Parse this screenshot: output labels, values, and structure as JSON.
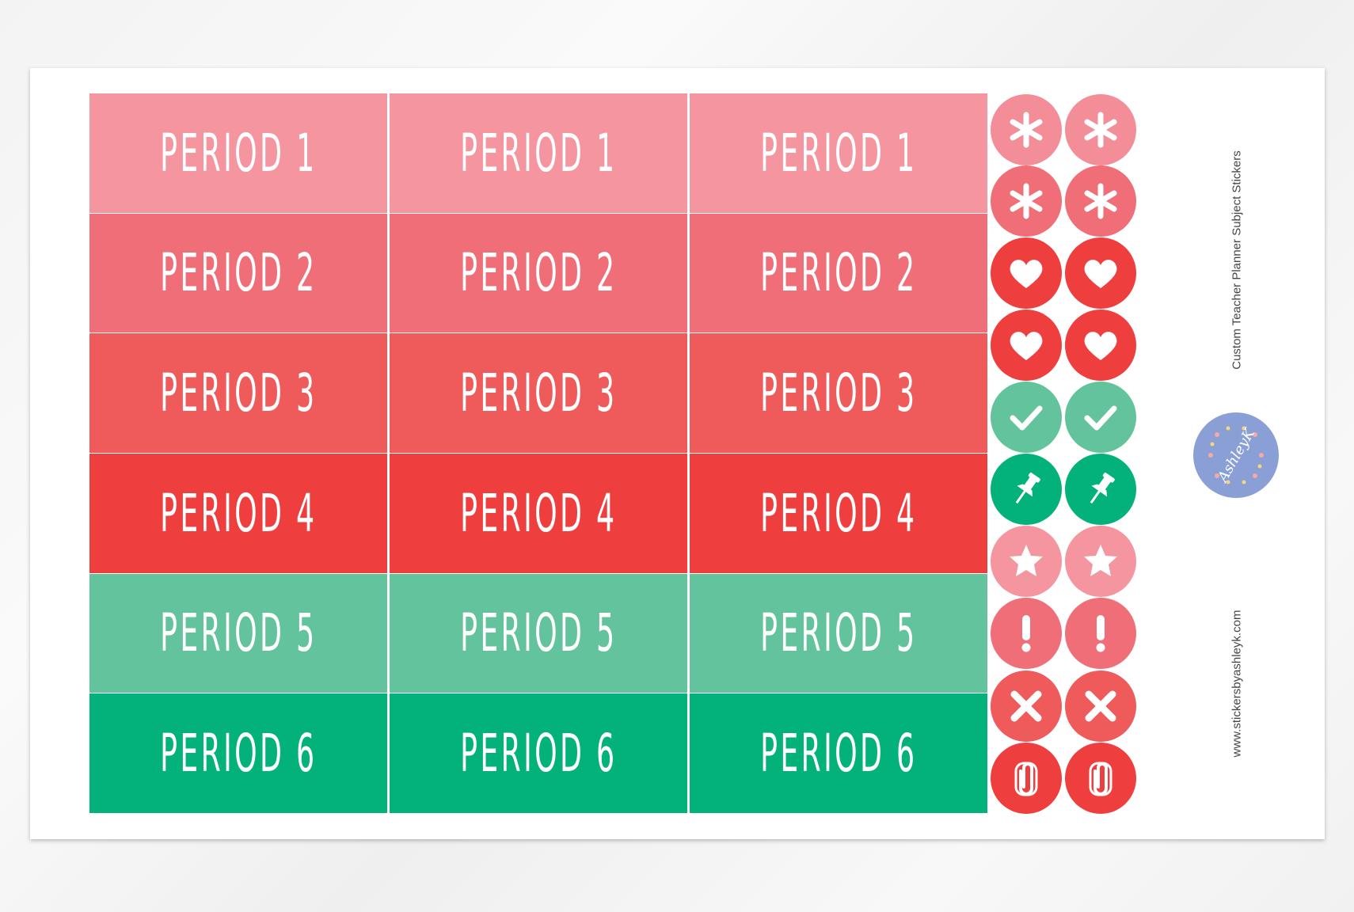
{
  "sheet": {
    "rows": [
      {
        "label": "PERIOD 1",
        "color": "#f4959f"
      },
      {
        "label": "PERIOD 2",
        "color": "#f06e77"
      },
      {
        "label": "PERIOD 3",
        "color": "#ef5a5b"
      },
      {
        "label": "PERIOD 4",
        "color": "#ee3f3e"
      },
      {
        "label": "PERIOD 5",
        "color": "#63c39c"
      },
      {
        "label": "PERIOD 6",
        "color": "#02b27a"
      }
    ],
    "icon_stickers": [
      {
        "icon": "asterisk-icon",
        "color": "#f38d98"
      },
      {
        "icon": "asterisk-icon",
        "color": "#f06e77"
      },
      {
        "icon": "heart-icon",
        "color": "#ee3f3e"
      },
      {
        "icon": "heart-icon",
        "color": "#ee3f3e"
      },
      {
        "icon": "check-icon",
        "color": "#63c39c"
      },
      {
        "icon": "pushpin-icon",
        "color": "#02b27a"
      },
      {
        "icon": "star-icon",
        "color": "#f4959f"
      },
      {
        "icon": "exclamation-icon",
        "color": "#f06e77"
      },
      {
        "icon": "x-icon",
        "color": "#ef5a5b"
      },
      {
        "icon": "paperclip-icon",
        "color": "#ee3f3e"
      }
    ],
    "title": "Custom Teacher Planner Subject Stickers",
    "website": "www.stickersbyashleyk.com",
    "logo_text": "by AshleyK",
    "logo_color": "#8a9fd6"
  }
}
